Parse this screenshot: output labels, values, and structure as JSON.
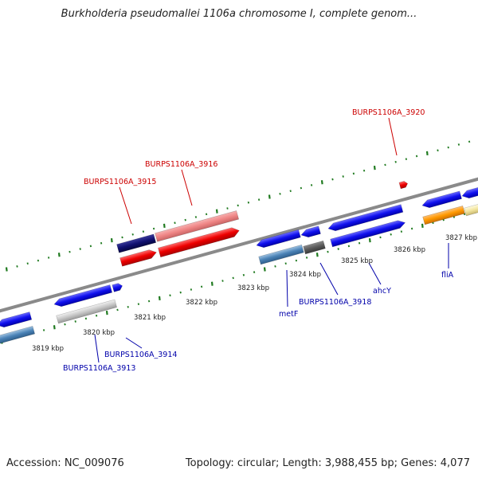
{
  "title": "Burkholderia pseudomallei 1106a chromosome I, complete genom...",
  "footer": {
    "accession": "Accession: NC_009076",
    "summary": "Topology: circular; Length: 3,988,455 bp; Genes: 4,077"
  },
  "colors": {
    "backbone": "#8a8a8a",
    "ticks": "#1f7a1f",
    "label_red": "#cc0000",
    "label_blue": "#0000aa"
  },
  "kbp_ticks": [
    "3819 kbp",
    "3820 kbp",
    "3821 kbp",
    "3822 kbp",
    "3823 kbp",
    "3824 kbp",
    "3825 kbp",
    "3826 kbp",
    "3827 kbp"
  ],
  "gene_labels": [
    {
      "text": "BURPS1106A_3920",
      "color": "red"
    },
    {
      "text": "BURPS1106A_3916",
      "color": "red"
    },
    {
      "text": "BURPS1106A_3915",
      "color": "red"
    },
    {
      "text": "BURPS1106A_3918",
      "color": "blue"
    },
    {
      "text": "ahcY",
      "color": "blue"
    },
    {
      "text": "fliA",
      "color": "blue"
    },
    {
      "text": "metF",
      "color": "blue"
    },
    {
      "text": "BURPS1106A_3914",
      "color": "blue"
    },
    {
      "text": "BURPS1106A_3913",
      "color": "blue"
    }
  ]
}
